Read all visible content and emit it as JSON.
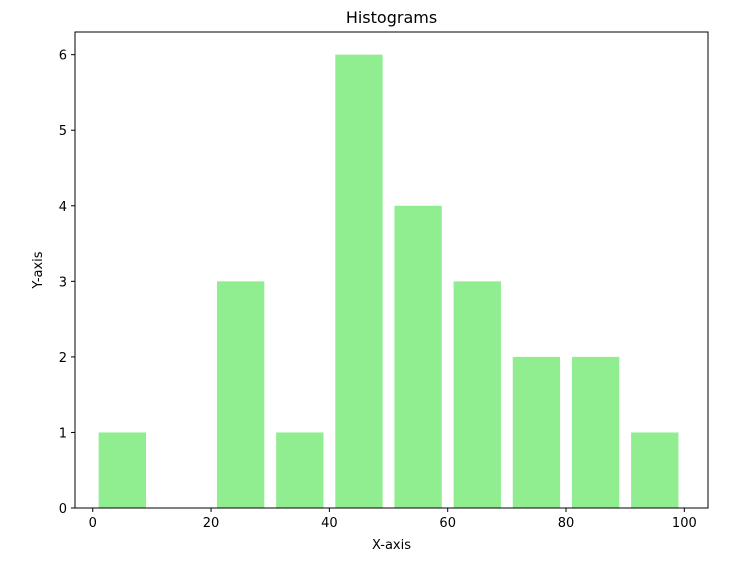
{
  "chart_data": {
    "type": "bar",
    "title": "Histograms",
    "xlabel": "X-axis",
    "ylabel": "Y-axis",
    "bins": [
      {
        "start": 0,
        "end": 10,
        "count": 1
      },
      {
        "start": 10,
        "end": 20,
        "count": 0
      },
      {
        "start": 20,
        "end": 30,
        "count": 3
      },
      {
        "start": 30,
        "end": 40,
        "count": 1
      },
      {
        "start": 40,
        "end": 50,
        "count": 6
      },
      {
        "start": 50,
        "end": 60,
        "count": 4
      },
      {
        "start": 60,
        "end": 70,
        "count": 3
      },
      {
        "start": 70,
        "end": 80,
        "count": 2
      },
      {
        "start": 80,
        "end": 90,
        "count": 2
      },
      {
        "start": 90,
        "end": 100,
        "count": 1
      }
    ],
    "xlim": [
      -3,
      104
    ],
    "ylim": [
      0,
      6.3
    ],
    "xticks": [
      0,
      20,
      40,
      60,
      80,
      100
    ],
    "yticks": [
      0,
      1,
      2,
      3,
      4,
      5,
      6
    ],
    "grid": false,
    "bar_color": "#90ee90"
  }
}
